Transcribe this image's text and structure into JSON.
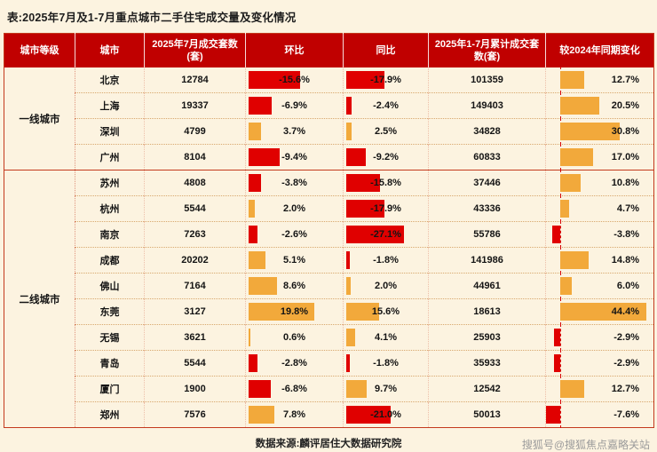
{
  "title": "表:2025年7月及1-7月重点城市二手住宅成交量及变化情况",
  "chart_data": {
    "type": "table",
    "columns": [
      "城市等级",
      "城市",
      "2025年7月成交套数(套)",
      "环比",
      "同比",
      "2025年1-7月累计成交套数(套)",
      "较2024年同期变化"
    ],
    "bar_columns": [
      "环比",
      "同比",
      "较2024年同期变化"
    ],
    "bar_colors": {
      "positive": "#f2a93b",
      "negative": "#e00000"
    },
    "groups": [
      {
        "tier": "一线城市",
        "rows": [
          {
            "city": "北京",
            "jul_sales": 12784,
            "mom_pct": -15.6,
            "yoy_pct": -17.9,
            "cum_sales": 101359,
            "vs2024_pct": 12.7
          },
          {
            "city": "上海",
            "jul_sales": 19337,
            "mom_pct": -6.9,
            "yoy_pct": -2.4,
            "cum_sales": 149403,
            "vs2024_pct": 20.5
          },
          {
            "city": "深圳",
            "jul_sales": 4799,
            "mom_pct": 3.7,
            "yoy_pct": 2.5,
            "cum_sales": 34828,
            "vs2024_pct": 30.8
          },
          {
            "city": "广州",
            "jul_sales": 8104,
            "mom_pct": -9.4,
            "yoy_pct": -9.2,
            "cum_sales": 60833,
            "vs2024_pct": 17.0
          }
        ]
      },
      {
        "tier": "二线城市",
        "rows": [
          {
            "city": "苏州",
            "jul_sales": 4808,
            "mom_pct": -3.8,
            "yoy_pct": -15.8,
            "cum_sales": 37446,
            "vs2024_pct": 10.8
          },
          {
            "city": "杭州",
            "jul_sales": 5544,
            "mom_pct": 2.0,
            "yoy_pct": -17.9,
            "cum_sales": 43336,
            "vs2024_pct": 4.7
          },
          {
            "city": "南京",
            "jul_sales": 7263,
            "mom_pct": -2.6,
            "yoy_pct": -27.1,
            "cum_sales": 55786,
            "vs2024_pct": -3.8
          },
          {
            "city": "成都",
            "jul_sales": 20202,
            "mom_pct": 5.1,
            "yoy_pct": -1.8,
            "cum_sales": 141986,
            "vs2024_pct": 14.8
          },
          {
            "city": "佛山",
            "jul_sales": 7164,
            "mom_pct": 8.6,
            "yoy_pct": 2.0,
            "cum_sales": 44961,
            "vs2024_pct": 6.0
          },
          {
            "city": "东莞",
            "jul_sales": 3127,
            "mom_pct": 19.8,
            "yoy_pct": 15.6,
            "cum_sales": 18613,
            "vs2024_pct": 44.4
          },
          {
            "city": "无锡",
            "jul_sales": 3621,
            "mom_pct": 0.6,
            "yoy_pct": 4.1,
            "cum_sales": 25903,
            "vs2024_pct": -2.9
          },
          {
            "city": "青岛",
            "jul_sales": 5544,
            "mom_pct": -2.8,
            "yoy_pct": -1.8,
            "cum_sales": 35933,
            "vs2024_pct": -2.9
          },
          {
            "city": "厦门",
            "jul_sales": 1900,
            "mom_pct": -6.8,
            "yoy_pct": 9.7,
            "cum_sales": 12542,
            "vs2024_pct": 12.7
          },
          {
            "city": "郑州",
            "jul_sales": 7576,
            "mom_pct": 7.8,
            "yoy_pct": -21.0,
            "cum_sales": 50013,
            "vs2024_pct": -7.6
          }
        ]
      }
    ]
  },
  "footer": {
    "source": "数据来源:麟评居住大数据研究院",
    "watermark": "搜狐号@搜狐焦点嘉略关站"
  },
  "colors": {
    "header_bg": "#c00000",
    "bar_negative": "#e00000",
    "bar_positive": "#f2a93b",
    "page_bg": "#fcf3e0",
    "border": "#c43a1e"
  }
}
